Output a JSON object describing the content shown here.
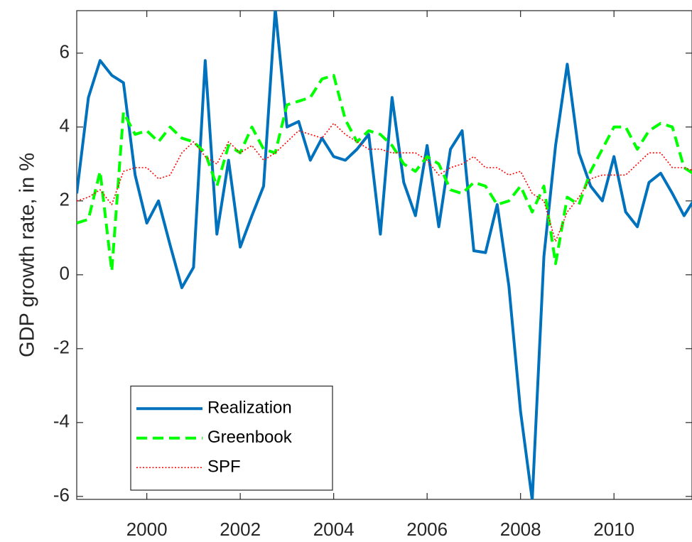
{
  "chart_data": {
    "type": "line",
    "ylabel": "GDP growth rate, in %",
    "x": [
      1998.5,
      1998.75,
      1999,
      1999.25,
      1999.5,
      1999.75,
      2000,
      2000.25,
      2000.5,
      2000.75,
      2001,
      2001.25,
      2001.5,
      2001.75,
      2002,
      2002.25,
      2002.5,
      2002.75,
      2003,
      2003.25,
      2003.5,
      2003.75,
      2004,
      2004.25,
      2004.5,
      2004.75,
      2005,
      2005.25,
      2005.5,
      2005.75,
      2006,
      2006.25,
      2006.5,
      2006.75,
      2007,
      2007.25,
      2007.5,
      2007.75,
      2008,
      2008.25,
      2008.5,
      2008.75,
      2009,
      2009.25,
      2009.5,
      2009.75,
      2010,
      2010.25,
      2010.5,
      2010.75,
      2011,
      2011.25,
      2011.5,
      2011.75
    ],
    "series": [
      {
        "name": "Realization",
        "color": "#0072bd",
        "style": "solid",
        "values": [
          2.2,
          4.8,
          5.8,
          5.4,
          5.2,
          2.7,
          1.4,
          2.0,
          0.8,
          -0.35,
          0.2,
          5.8,
          1.1,
          3.1,
          0.75,
          1.6,
          2.4,
          7.2,
          4.0,
          4.15,
          3.1,
          3.7,
          3.2,
          3.1,
          3.4,
          3.8,
          1.1,
          4.8,
          2.5,
          1.6,
          3.5,
          1.3,
          3.4,
          3.9,
          0.65,
          0.6,
          1.9,
          -0.3,
          -3.7,
          -6.1,
          0.5,
          3.5,
          5.7,
          3.3,
          2.4,
          2.0,
          3.2,
          1.7,
          1.3,
          2.5,
          2.75,
          2.2,
          1.6,
          2.1
        ]
      },
      {
        "name": "Greenbook",
        "color": "#00ff00",
        "style": "dashed",
        "values": [
          1.4,
          1.5,
          2.8,
          0.1,
          4.4,
          3.8,
          3.9,
          3.6,
          4.0,
          3.7,
          3.6,
          3.3,
          2.4,
          3.5,
          3.3,
          4.0,
          3.4,
          3.3,
          4.6,
          4.7,
          4.8,
          5.3,
          5.4,
          4.2,
          3.6,
          3.9,
          3.8,
          3.5,
          3.0,
          2.8,
          3.2,
          3.0,
          2.3,
          2.2,
          2.5,
          2.4,
          1.9,
          2.0,
          2.4,
          1.7,
          2.4,
          0.3,
          2.1,
          1.9,
          2.8,
          3.4,
          4.0,
          4.0,
          3.4,
          3.9,
          4.1,
          4.0,
          2.9,
          2.7
        ]
      },
      {
        "name": "SPF",
        "color": "#ff0000",
        "style": "dotted",
        "values": [
          2.0,
          2.1,
          2.3,
          1.9,
          2.8,
          2.9,
          2.9,
          2.6,
          2.7,
          3.3,
          3.6,
          3.2,
          3.0,
          3.6,
          3.3,
          3.5,
          3.1,
          3.3,
          3.6,
          3.9,
          3.8,
          3.7,
          4.1,
          3.8,
          3.6,
          3.4,
          3.4,
          3.3,
          3.3,
          3.3,
          3.1,
          2.7,
          2.9,
          3.0,
          3.2,
          2.9,
          2.9,
          2.7,
          2.8,
          2.2,
          2.0,
          0.9,
          1.7,
          2.1,
          2.6,
          2.7,
          2.7,
          2.7,
          3.0,
          3.3,
          3.3,
          2.9,
          2.9,
          2.8
        ]
      }
    ],
    "xlim": [
      1998.5,
      2011.67
    ],
    "ylim": [
      -6.08,
      7.15
    ],
    "xticks": [
      2000,
      2002,
      2004,
      2006,
      2008,
      2010
    ],
    "yticks": [
      -6,
      -4,
      -2,
      0,
      2,
      4,
      6
    ],
    "legend": "lower left"
  }
}
